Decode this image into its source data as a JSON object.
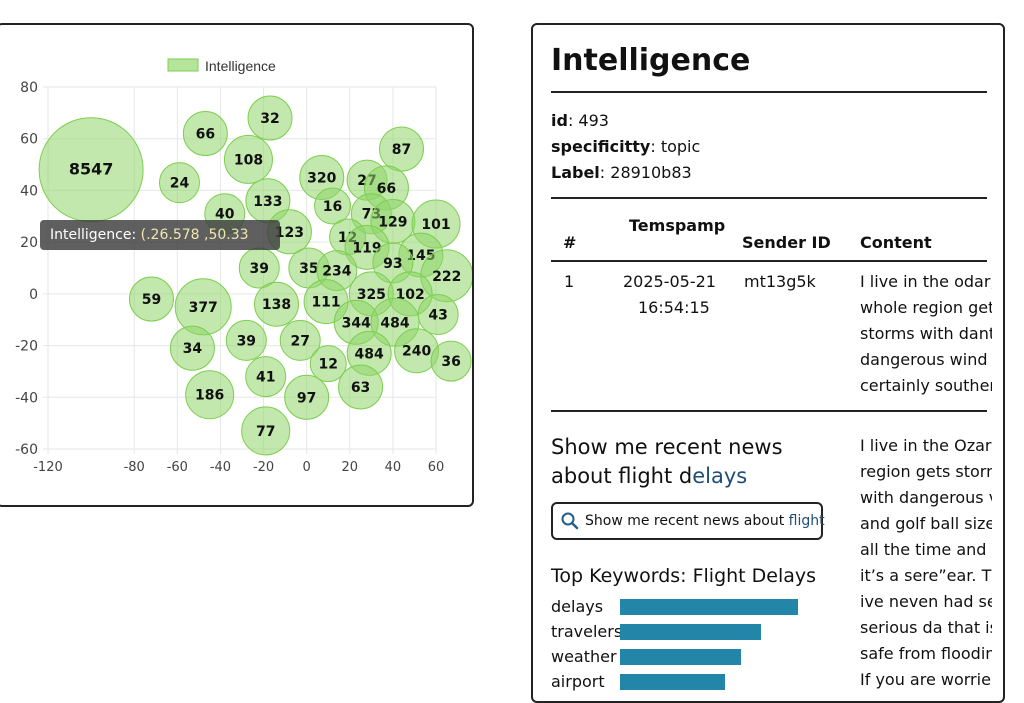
{
  "chart_data": {
    "type": "scatter",
    "legend": {
      "label": "Intelligence",
      "placement": "top-center"
    },
    "xlim": [
      -120,
      60
    ],
    "ylim": [
      -60,
      80
    ],
    "x_ticks": [
      "-120",
      "-80",
      "-60",
      "-40",
      "-20",
      "0",
      "20",
      "40",
      "60"
    ],
    "x_tick_values": [
      -120,
      -80,
      -60,
      -40,
      -20,
      0,
      20,
      40,
      60
    ],
    "y_ticks": [
      "80",
      "60",
      "40",
      "20",
      "0",
      "-20",
      "-40",
      "-60"
    ],
    "y_tick_values": [
      80,
      60,
      40,
      20,
      0,
      -20,
      -40,
      -60
    ],
    "grid": true,
    "color": "#8fd66a",
    "points": [
      {
        "label": "8547",
        "x": -100,
        "y": 48,
        "size": 8547
      },
      {
        "label": "66",
        "x": -47,
        "y": 62,
        "size": 66
      },
      {
        "label": "32",
        "x": -17,
        "y": 68,
        "size": 32
      },
      {
        "label": "108",
        "x": -27,
        "y": 52,
        "size": 108
      },
      {
        "label": "87",
        "x": 44,
        "y": 56,
        "size": 87
      },
      {
        "label": "24",
        "x": -59,
        "y": 43,
        "size": 24
      },
      {
        "label": "320",
        "x": 7,
        "y": 45,
        "size": 320
      },
      {
        "label": "27",
        "x": 28,
        "y": 44,
        "size": 27
      },
      {
        "label": "66",
        "x": 37,
        "y": 41,
        "size": 66
      },
      {
        "label": "40",
        "x": -38,
        "y": 31,
        "size": 40
      },
      {
        "label": "133",
        "x": -18,
        "y": 36,
        "size": 133
      },
      {
        "label": "16",
        "x": 12,
        "y": 34,
        "size": 16
      },
      {
        "label": "73",
        "x": 30,
        "y": 31,
        "size": 73
      },
      {
        "label": "129",
        "x": 40,
        "y": 28,
        "size": 129
      },
      {
        "label": "101",
        "x": 60,
        "y": 27,
        "size": 101
      },
      {
        "label": "123",
        "x": -8,
        "y": 24,
        "size": 123
      },
      {
        "label": "12",
        "x": 19,
        "y": 22,
        "size": 12
      },
      {
        "label": "119",
        "x": 28,
        "y": 18,
        "size": 119
      },
      {
        "label": "145",
        "x": 53,
        "y": 15,
        "size": 145
      },
      {
        "label": "93",
        "x": 40,
        "y": 12,
        "size": 93
      },
      {
        "label": "39",
        "x": -22,
        "y": 10,
        "size": 39
      },
      {
        "label": "35",
        "x": 1,
        "y": 10,
        "size": 35
      },
      {
        "label": "234",
        "x": 14,
        "y": 9,
        "size": 234
      },
      {
        "label": "222",
        "x": 65,
        "y": 7,
        "size": 222
      },
      {
        "label": "325",
        "x": 30,
        "y": 0,
        "size": 325
      },
      {
        "label": "102",
        "x": 48,
        "y": 0,
        "size": 102
      },
      {
        "label": "59",
        "x": -72,
        "y": -2,
        "size": 59
      },
      {
        "label": "377",
        "x": -48,
        "y": -5,
        "size": 377
      },
      {
        "label": "138",
        "x": -14,
        "y": -4,
        "size": 138
      },
      {
        "label": "111",
        "x": 9,
        "y": -3,
        "size": 111
      },
      {
        "label": "344",
        "x": 23,
        "y": -11,
        "size": 344
      },
      {
        "label": "484",
        "x": 41,
        "y": -11,
        "size": 484
      },
      {
        "label": "43",
        "x": 61,
        "y": -8,
        "size": 43
      },
      {
        "label": "34",
        "x": -53,
        "y": -21,
        "size": 34
      },
      {
        "label": "39",
        "x": -28,
        "y": -18,
        "size": 39
      },
      {
        "label": "27",
        "x": -3,
        "y": -18,
        "size": 27
      },
      {
        "label": "484",
        "x": 29,
        "y": -23,
        "size": 484
      },
      {
        "label": "240",
        "x": 51,
        "y": -22,
        "size": 240
      },
      {
        "label": "36",
        "x": 67,
        "y": -26,
        "size": 36
      },
      {
        "label": "12",
        "x": 10,
        "y": -27,
        "size": 12
      },
      {
        "label": "41",
        "x": -19,
        "y": -32,
        "size": 41
      },
      {
        "label": "186",
        "x": -45,
        "y": -39,
        "size": 186
      },
      {
        "label": "97",
        "x": 0,
        "y": -40,
        "size": 97
      },
      {
        "label": "63",
        "x": 25,
        "y": -36,
        "size": 63
      },
      {
        "label": "77",
        "x": -19,
        "y": -53,
        "size": 77
      }
    ]
  },
  "chart_radii": [
    26,
    11,
    11,
    12,
    11,
    10,
    11,
    10,
    11,
    10,
    11,
    9,
    10,
    11,
    12,
    11,
    9,
    11,
    11,
    10,
    10,
    10,
    10,
    13,
    11,
    11,
    11,
    14,
    11,
    11,
    11,
    12,
    10,
    11,
    10,
    10,
    11,
    11,
    10,
    9,
    10,
    12,
    11,
    11,
    12
  ],
  "tooltip": {
    "series": "Intelligence",
    "colon": ":",
    "value": "(.26.578 ,50.33"
  },
  "detail": {
    "title": "Intelligence",
    "id_key": "id",
    "id_value": ": 493",
    "spec_key": "specificitty",
    "spec_value": ": topic",
    "label_key": "Label",
    "label_value": ": 28910b83",
    "table": {
      "headers": {
        "num": "#",
        "timestamp": "Temspamp",
        "sender": "Sender ID",
        "content": "Content"
      },
      "row": {
        "num": "1",
        "date": "2025-05-21",
        "time": "16:54:15",
        "sender": "mt13g5k",
        "content_lines": [
          "I live in the odar, t",
          "whole region get",
          "storms with dant",
          "dangerous wind",
          "certainly souther"
        ]
      }
    },
    "query_prefix": "Show me recent news about flight d",
    "query_highlight": "elays",
    "search_prefix": "Show me recent news about ",
    "search_highlight": "flight",
    "keywords_title": "Top Keywords: Flight  Delays",
    "keywords": [
      {
        "label": "delays",
        "value": 1.0
      },
      {
        "label": "travelers",
        "value": 0.79
      },
      {
        "label": "weather",
        "value": 0.68
      },
      {
        "label": "airport",
        "value": 0.59
      }
    ],
    "bar_color": "#2386a8",
    "content_lines_2": [
      "I live in the Ozark",
      "region gets storn",
      "with dangerous v",
      "and golf ball size",
      "all the time and c",
      "it’s a sere”ear. Th",
      "ive neven had se",
      "serious da that is",
      "safe from floodin",
      "If you are worrie"
    ]
  }
}
